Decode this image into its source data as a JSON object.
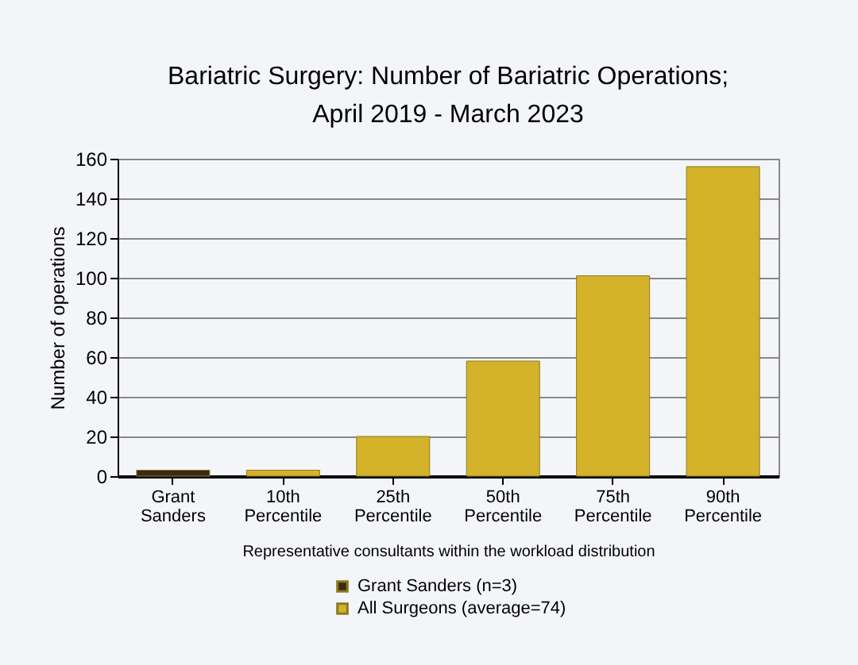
{
  "chart_data": {
    "type": "bar",
    "title": [
      "Bariatric Surgery: Number of Bariatric Operations;",
      "April 2019 - March 2023"
    ],
    "xlabel": "Representative consultants within the workload distribution",
    "ylabel": "Number of operations",
    "categories": [
      "Grant Sanders",
      "10th Percentile",
      "25th Percentile",
      "50th Percentile",
      "75th Percentile",
      "90th Percentile"
    ],
    "series": [
      {
        "name": "Grant Sanders (n=3)",
        "color": "#3b2a14",
        "values": [
          3,
          null,
          null,
          null,
          null,
          null
        ]
      },
      {
        "name": "All Surgeons (average=74)",
        "color": "#d4b22a",
        "values": [
          null,
          3,
          20,
          58,
          101,
          156
        ]
      }
    ],
    "ylim": [
      0,
      160
    ],
    "yticks": [
      0,
      20,
      40,
      60,
      80,
      100,
      120,
      140,
      160
    ],
    "grid": "y",
    "legend": "bottom"
  }
}
